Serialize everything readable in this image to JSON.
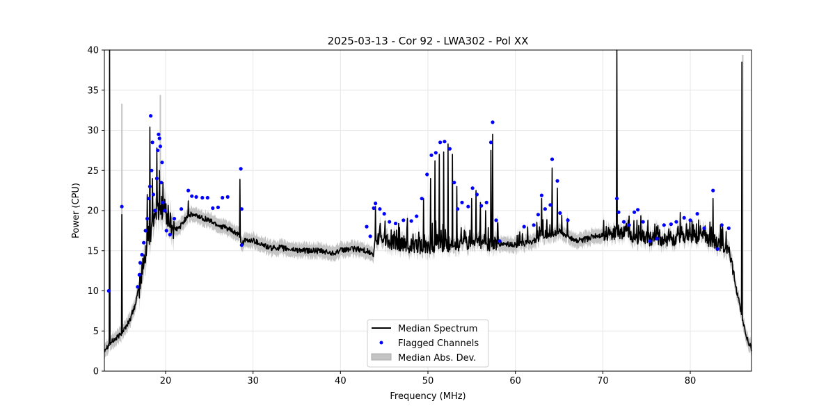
{
  "chart_data": {
    "type": "line",
    "title": "2025-03-13 - Cor 92 - LWA302 - Pol XX",
    "xlabel": "Frequency (MHz)",
    "ylabel": "Power (CPU)",
    "xlim": [
      13,
      87
    ],
    "ylim": [
      0,
      40
    ],
    "xticks": [
      20,
      30,
      40,
      50,
      60,
      70,
      80
    ],
    "yticks": [
      0,
      5,
      10,
      15,
      20,
      25,
      30,
      35,
      40
    ],
    "grid": true,
    "legend": {
      "position": "lower-center",
      "entries": [
        "Median Spectrum",
        "Flagged Channels",
        "Median Abs. Dev."
      ]
    },
    "colors": {
      "median": "#000000",
      "flagged": "#0000ff",
      "mad": "#c4c4c4",
      "grid": "#e6e6e6"
    },
    "series": [
      {
        "name": "Median Spectrum",
        "baseline": [
          [
            13.0,
            2.7
          ],
          [
            13.5,
            3.3
          ],
          [
            14.0,
            3.8
          ],
          [
            14.5,
            4.2
          ],
          [
            15.0,
            4.8
          ],
          [
            15.5,
            5.6
          ],
          [
            16.0,
            6.6
          ],
          [
            16.5,
            8.2
          ],
          [
            17.0,
            10.5
          ],
          [
            17.5,
            13.5
          ],
          [
            18.0,
            16.5
          ],
          [
            18.5,
            18.5
          ],
          [
            19.0,
            20.0
          ],
          [
            19.5,
            20.5
          ],
          [
            20.0,
            20.0
          ],
          [
            20.5,
            18.5
          ],
          [
            21.0,
            17.6
          ],
          [
            21.5,
            17.8
          ],
          [
            22.0,
            18.5
          ],
          [
            22.5,
            19.4
          ],
          [
            23.0,
            19.5
          ],
          [
            24.0,
            19.2
          ],
          [
            25.0,
            18.8
          ],
          [
            26.0,
            18.2
          ],
          [
            27.0,
            17.8
          ],
          [
            28.0,
            17.2
          ],
          [
            28.5,
            16.8
          ],
          [
            28.7,
            15.8
          ],
          [
            29.0,
            16.2
          ],
          [
            30.0,
            16.3
          ],
          [
            31.0,
            15.8
          ],
          [
            32.0,
            15.3
          ],
          [
            33.0,
            15.4
          ],
          [
            34.0,
            15.2
          ],
          [
            35.0,
            15.1
          ],
          [
            36.0,
            15.0
          ],
          [
            37.0,
            15.0
          ],
          [
            38.0,
            14.9
          ],
          [
            39.0,
            14.7
          ],
          [
            40.0,
            15.0
          ],
          [
            41.0,
            15.2
          ],
          [
            42.0,
            15.2
          ],
          [
            43.0,
            15.0
          ],
          [
            43.8,
            14.4
          ],
          [
            44.0,
            16.5
          ],
          [
            45.0,
            16.2
          ],
          [
            46.0,
            16.0
          ],
          [
            47.0,
            15.8
          ],
          [
            48.0,
            15.6
          ],
          [
            49.0,
            15.5
          ],
          [
            50.0,
            15.4
          ],
          [
            51.0,
            15.5
          ],
          [
            52.0,
            15.6
          ],
          [
            53.0,
            15.8
          ],
          [
            54.0,
            15.9
          ],
          [
            55.0,
            16.0
          ],
          [
            56.0,
            15.9
          ],
          [
            57.0,
            15.8
          ],
          [
            58.0,
            15.8
          ],
          [
            59.0,
            15.8
          ],
          [
            60.0,
            15.7
          ],
          [
            61.0,
            15.9
          ],
          [
            62.0,
            16.2
          ],
          [
            63.0,
            16.6
          ],
          [
            64.0,
            17.0
          ],
          [
            65.0,
            17.2
          ],
          [
            66.0,
            16.8
          ],
          [
            67.0,
            16.2
          ],
          [
            68.0,
            16.4
          ],
          [
            69.0,
            16.8
          ],
          [
            70.0,
            16.9
          ],
          [
            71.0,
            17.2
          ],
          [
            72.0,
            17.4
          ],
          [
            73.0,
            16.8
          ],
          [
            74.0,
            16.6
          ],
          [
            75.0,
            16.5
          ],
          [
            76.0,
            16.4
          ],
          [
            77.0,
            16.3
          ],
          [
            78.0,
            16.4
          ],
          [
            79.0,
            16.6
          ],
          [
            80.0,
            16.8
          ],
          [
            81.0,
            16.7
          ],
          [
            82.0,
            16.4
          ],
          [
            83.0,
            16.0
          ],
          [
            84.0,
            15.6
          ],
          [
            84.5,
            14.8
          ],
          [
            85.0,
            11.5
          ],
          [
            85.5,
            9.0
          ],
          [
            86.0,
            6.2
          ],
          [
            86.5,
            4.0
          ],
          [
            87.0,
            2.8
          ]
        ],
        "spikes": [
          [
            13.6,
            40
          ],
          [
            15.0,
            19.5
          ],
          [
            17.9,
            22.0
          ],
          [
            18.2,
            30.4
          ],
          [
            18.5,
            24.0
          ],
          [
            19.0,
            27.8
          ],
          [
            19.3,
            25.0
          ],
          [
            19.7,
            23.5
          ],
          [
            22.6,
            21.2
          ],
          [
            28.5,
            23.9
          ],
          [
            44.0,
            20.5
          ],
          [
            49.5,
            21.5
          ],
          [
            50.3,
            24.0
          ],
          [
            50.8,
            26.2
          ],
          [
            51.3,
            27.0
          ],
          [
            51.8,
            27.3
          ],
          [
            52.3,
            28.3
          ],
          [
            52.8,
            27.0
          ],
          [
            53.3,
            23.0
          ],
          [
            55.0,
            21.5
          ],
          [
            55.5,
            22.5
          ],
          [
            56.0,
            21.0
          ],
          [
            56.6,
            20.0
          ],
          [
            57.2,
            27.5
          ],
          [
            57.4,
            29.5
          ],
          [
            58.0,
            18.5
          ],
          [
            63.0,
            21.5
          ],
          [
            64.2,
            25.3
          ],
          [
            64.8,
            22.8
          ],
          [
            71.6,
            40
          ],
          [
            82.6,
            21.5
          ],
          [
            85.9,
            38.5
          ]
        ]
      },
      {
        "name": "Flagged Channels",
        "points": [
          [
            13.5,
            10.0
          ],
          [
            15.0,
            20.5
          ],
          [
            16.8,
            10.5
          ],
          [
            17.0,
            12.0
          ],
          [
            17.1,
            13.5
          ],
          [
            17.3,
            14.5
          ],
          [
            17.5,
            16.0
          ],
          [
            17.7,
            17.5
          ],
          [
            17.9,
            19.0
          ],
          [
            18.1,
            21.5
          ],
          [
            18.2,
            23.0
          ],
          [
            18.3,
            31.8
          ],
          [
            18.4,
            25.0
          ],
          [
            18.5,
            28.5
          ],
          [
            18.6,
            22.0
          ],
          [
            18.8,
            20.0
          ],
          [
            19.0,
            24.0
          ],
          [
            19.1,
            27.5
          ],
          [
            19.2,
            29.5
          ],
          [
            19.3,
            29.0
          ],
          [
            19.4,
            28.0
          ],
          [
            19.5,
            23.5
          ],
          [
            19.6,
            26.0
          ],
          [
            19.7,
            21.0
          ],
          [
            19.9,
            20.0
          ],
          [
            20.1,
            17.5
          ],
          [
            20.5,
            17.0
          ],
          [
            21.0,
            19.0
          ],
          [
            21.8,
            20.2
          ],
          [
            22.6,
            22.5
          ],
          [
            23.0,
            21.8
          ],
          [
            23.5,
            21.7
          ],
          [
            24.2,
            21.6
          ],
          [
            24.8,
            21.6
          ],
          [
            25.4,
            20.3
          ],
          [
            26.0,
            20.4
          ],
          [
            26.5,
            21.6
          ],
          [
            27.1,
            21.7
          ],
          [
            28.6,
            25.2
          ],
          [
            28.7,
            20.2
          ],
          [
            28.7,
            15.7
          ],
          [
            43.0,
            18.0
          ],
          [
            43.4,
            16.8
          ],
          [
            43.8,
            20.3
          ],
          [
            44.0,
            20.9
          ],
          [
            44.5,
            20.2
          ],
          [
            45.0,
            19.6
          ],
          [
            45.6,
            18.6
          ],
          [
            46.3,
            18.4
          ],
          [
            47.2,
            18.8
          ],
          [
            48.1,
            18.7
          ],
          [
            48.7,
            19.3
          ],
          [
            49.3,
            21.5
          ],
          [
            49.9,
            24.5
          ],
          [
            50.4,
            26.9
          ],
          [
            50.9,
            27.2
          ],
          [
            51.4,
            28.5
          ],
          [
            51.9,
            28.6
          ],
          [
            52.5,
            27.7
          ],
          [
            53.0,
            23.5
          ],
          [
            53.4,
            20.2
          ],
          [
            53.9,
            21.0
          ],
          [
            54.6,
            20.5
          ],
          [
            55.1,
            22.8
          ],
          [
            55.6,
            22.0
          ],
          [
            56.1,
            20.6
          ],
          [
            56.7,
            21.0
          ],
          [
            57.2,
            28.5
          ],
          [
            57.4,
            31.0
          ],
          [
            57.8,
            18.8
          ],
          [
            58.2,
            16.2
          ],
          [
            61.0,
            18.0
          ],
          [
            62.1,
            18.2
          ],
          [
            62.6,
            19.5
          ],
          [
            63.0,
            21.9
          ],
          [
            63.4,
            20.2
          ],
          [
            64.0,
            20.7
          ],
          [
            64.2,
            26.4
          ],
          [
            64.8,
            23.7
          ],
          [
            65.1,
            19.7
          ],
          [
            66.0,
            18.8
          ],
          [
            71.6,
            21.5
          ],
          [
            71.8,
            19.8
          ],
          [
            72.4,
            18.6
          ],
          [
            73.0,
            18.2
          ],
          [
            73.6,
            19.8
          ],
          [
            74.0,
            20.1
          ],
          [
            74.6,
            18.6
          ],
          [
            75.4,
            16.2
          ],
          [
            76.2,
            16.5
          ],
          [
            77.0,
            18.2
          ],
          [
            77.8,
            18.3
          ],
          [
            78.4,
            18.6
          ],
          [
            79.3,
            19.1
          ],
          [
            80.0,
            18.8
          ],
          [
            80.8,
            19.6
          ],
          [
            81.6,
            17.8
          ],
          [
            82.6,
            22.5
          ],
          [
            83.1,
            15.2
          ],
          [
            83.6,
            18.2
          ],
          [
            84.4,
            17.8
          ]
        ]
      },
      {
        "name": "Median Abs. Dev.",
        "spread": 0.9,
        "extra_peaks": [
          [
            15.0,
            33.3
          ],
          [
            19.4,
            34.4
          ],
          [
            86.0,
            39.4
          ]
        ]
      }
    ]
  }
}
